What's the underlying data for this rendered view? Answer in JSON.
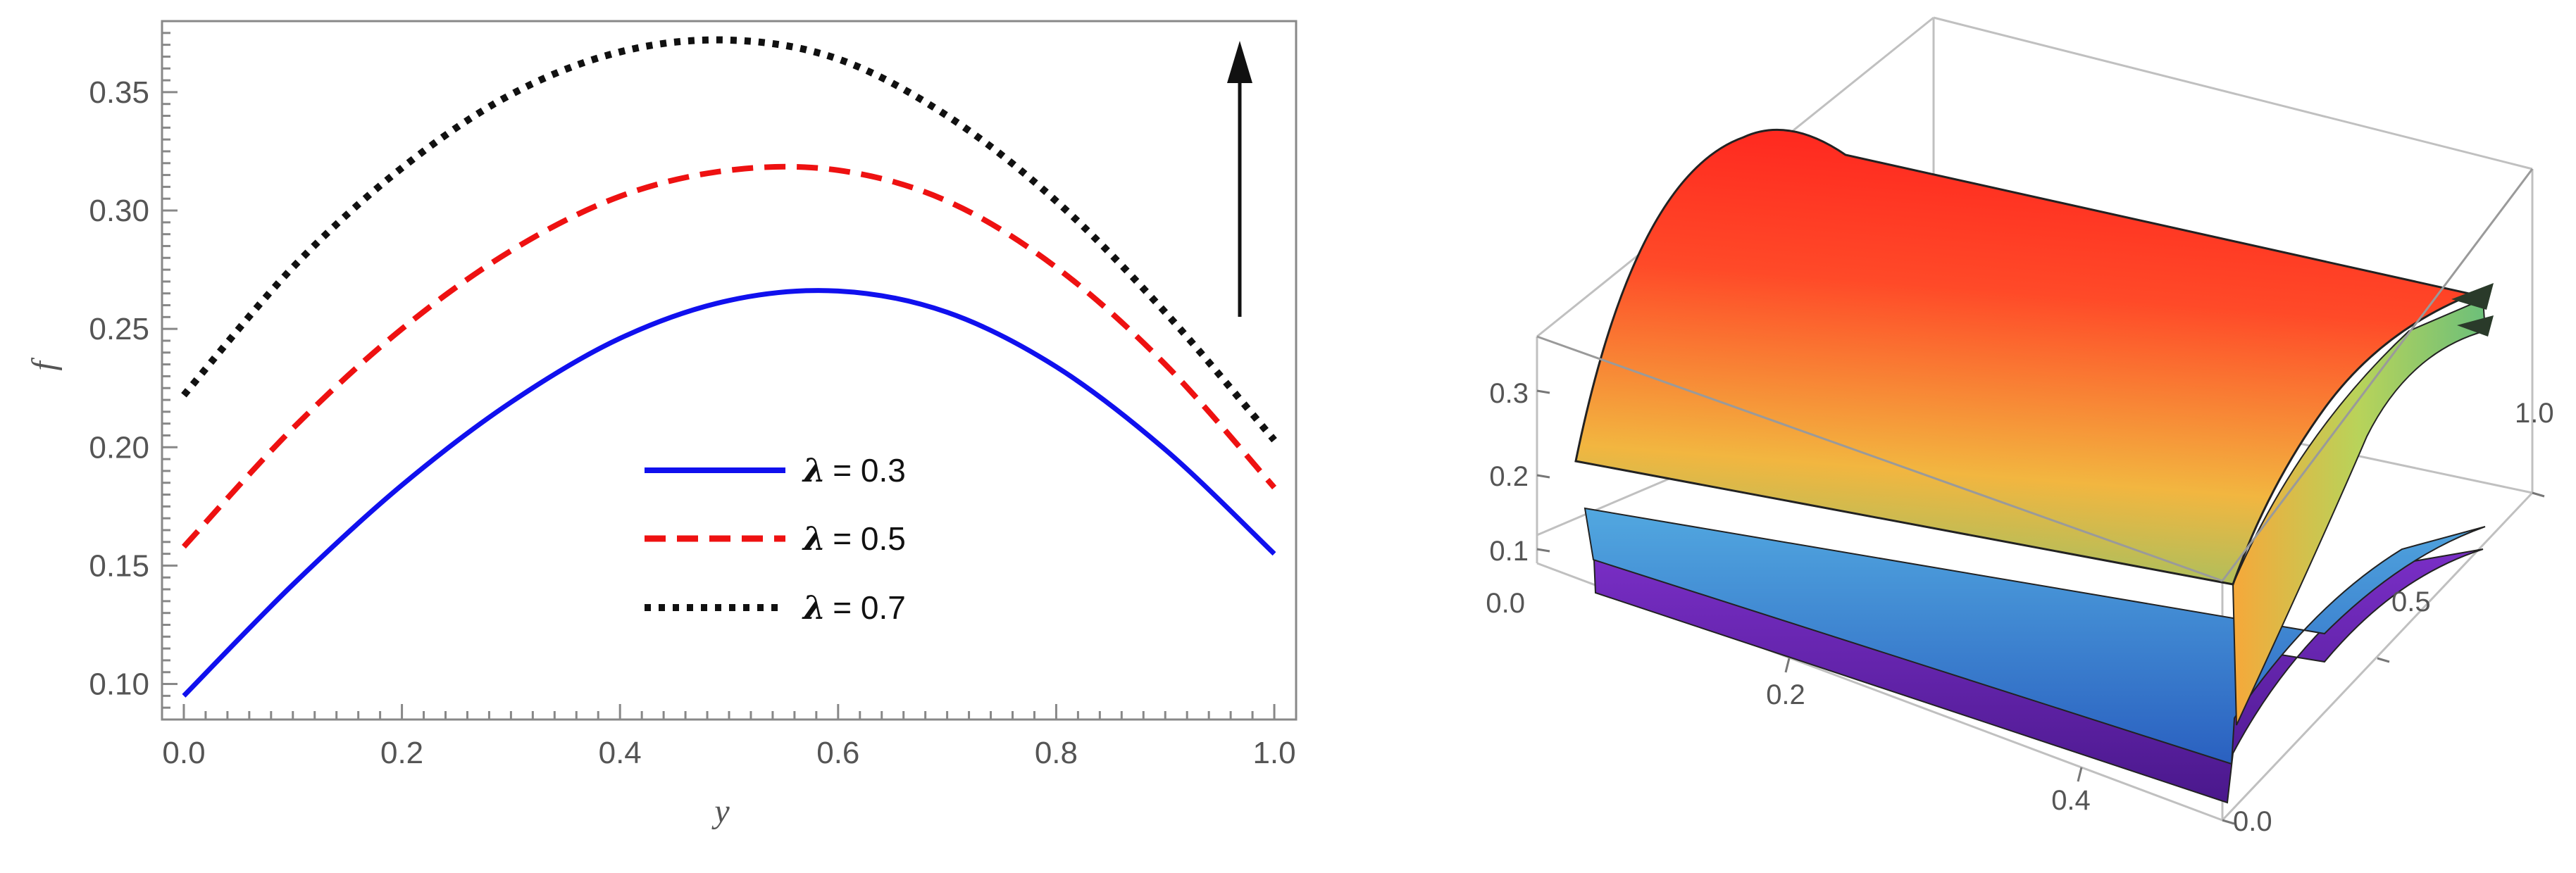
{
  "chart_data": [
    {
      "type": "line",
      "xlabel": "y",
      "ylabel": "f",
      "xlim": [
        -0.02,
        1.02
      ],
      "ylim": [
        0.085,
        0.38
      ],
      "xticks": [
        0.0,
        0.2,
        0.4,
        0.6,
        0.8,
        1.0
      ],
      "xtick_labels": [
        "0.0",
        "0.2",
        "0.4",
        "0.6",
        "0.8",
        "1.0"
      ],
      "yticks": [
        0.1,
        0.15,
        0.2,
        0.25,
        0.3,
        0.35
      ],
      "ytick_labels": [
        "0.10",
        "0.15",
        "0.20",
        "0.25",
        "0.30",
        "0.35"
      ],
      "x": [
        0.0,
        0.1,
        0.2,
        0.3,
        0.4,
        0.5,
        0.6,
        0.7,
        0.8,
        0.9,
        1.0
      ],
      "series": [
        {
          "name": "λ = 0.3",
          "symbol": "λ",
          "value_label": "= 0.3",
          "style": "solid",
          "color": "#1010ee",
          "values": [
            0.095,
            0.142,
            0.184,
            0.219,
            0.246,
            0.262,
            0.266,
            0.257,
            0.234,
            0.199,
            0.155
          ]
        },
        {
          "name": "λ = 0.5",
          "symbol": "λ",
          "value_label": "= 0.5",
          "style": "dashed",
          "color": "#ee1111",
          "values": [
            0.158,
            0.208,
            0.25,
            0.283,
            0.306,
            0.317,
            0.317,
            0.304,
            0.276,
            0.235,
            0.183
          ]
        },
        {
          "name": "λ = 0.7",
          "symbol": "λ",
          "value_label": "= 0.7",
          "style": "dotted",
          "color": "#111111",
          "values": [
            0.222,
            0.276,
            0.318,
            0.349,
            0.367,
            0.372,
            0.364,
            0.34,
            0.304,
            0.257,
            0.203
          ]
        }
      ],
      "annotations": [
        {
          "type": "arrow",
          "direction": "up",
          "meaning": "increasing λ"
        }
      ],
      "legend_position": "center-bottom",
      "grid": false
    },
    {
      "type": "surface3d",
      "title": "",
      "vertical_ticks": [
        "0.0",
        "0.1",
        "0.2",
        "0.3"
      ],
      "front_axis_ticks": [
        "0.2",
        "0.4"
      ],
      "right_axis_ticks": [
        "0.0",
        "0.5",
        "1.0"
      ],
      "surfaces": [
        {
          "name": "λ = 0.3",
          "level": "low",
          "colors": [
            "#5a1fa0",
            "#7b2fc8"
          ]
        },
        {
          "name": "λ = 0.5",
          "level": "middle",
          "colors": [
            "#2a70c8",
            "#52a8e0"
          ]
        },
        {
          "name": "λ = 0.7",
          "level": "high",
          "colors": [
            "#8cc36a",
            "#f2b640",
            "#ff2a20"
          ]
        }
      ]
    }
  ]
}
